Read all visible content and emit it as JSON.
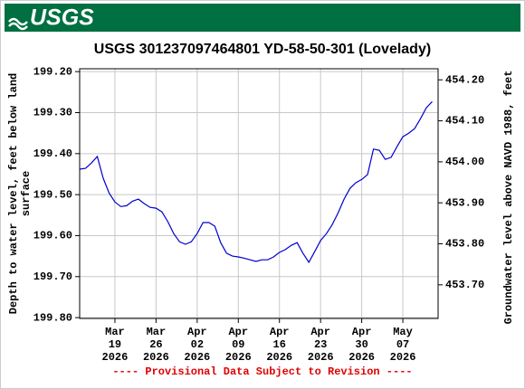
{
  "header": {
    "logo_text": "USGS"
  },
  "chart_data": {
    "type": "line",
    "title": "USGS 301237097464801 YD-58-50-301 (Lovelady)",
    "y_label": [
      "Depth to water level, feet below land",
      "surface"
    ],
    "y2_label": "Groundwater level above NAVD 1988, feet",
    "note": "---- Provisional Data Subject to Revision ----",
    "color": "#0000cc",
    "grid": true,
    "y_inverted": true,
    "xlim": [
      "2026-03-13",
      "2026-05-13"
    ],
    "xticks": [
      {
        "value": "2026-03-19",
        "label": [
          "Mar",
          "19",
          "2026"
        ]
      },
      {
        "value": "2026-03-26",
        "label": [
          "Mar",
          "26",
          "2026"
        ]
      },
      {
        "value": "2026-04-02",
        "label": [
          "Apr",
          "02",
          "2026"
        ]
      },
      {
        "value": "2026-04-09",
        "label": [
          "Apr",
          "09",
          "2026"
        ]
      },
      {
        "value": "2026-04-16",
        "label": [
          "Apr",
          "16",
          "2026"
        ]
      },
      {
        "value": "2026-04-23",
        "label": [
          "Apr",
          "23",
          "2026"
        ]
      },
      {
        "value": "2026-04-30",
        "label": [
          "Apr",
          "30",
          "2026"
        ]
      },
      {
        "value": "2026-05-07",
        "label": [
          "May",
          "07",
          "2026"
        ]
      }
    ],
    "ylim": [
      199.193,
      199.802
    ],
    "yticks": [
      {
        "value": 199.2,
        "label": "199.20"
      },
      {
        "value": 199.3,
        "label": "199.30"
      },
      {
        "value": 199.4,
        "label": "199.40"
      },
      {
        "value": 199.5,
        "label": "199.50"
      },
      {
        "value": 199.6,
        "label": "199.60"
      },
      {
        "value": 199.7,
        "label": "199.70"
      },
      {
        "value": 199.8,
        "label": "199.80"
      }
    ],
    "y2lim": [
      453.618,
      454.227
    ],
    "y2ticks": [
      {
        "value": 453.7,
        "label": "453.70"
      },
      {
        "value": 453.8,
        "label": "453.80"
      },
      {
        "value": 453.9,
        "label": "453.90"
      },
      {
        "value": 454.0,
        "label": "454.00"
      },
      {
        "value": 454.1,
        "label": "454.10"
      },
      {
        "value": 454.2,
        "label": "454.20"
      }
    ],
    "x": [
      "2026-03-13",
      "2026-03-14",
      "2026-03-15",
      "2026-03-16",
      "2026-03-17",
      "2026-03-18",
      "2026-03-19",
      "2026-03-20",
      "2026-03-21",
      "2026-03-22",
      "2026-03-23",
      "2026-03-24",
      "2026-03-25",
      "2026-03-26",
      "2026-03-27",
      "2026-03-28",
      "2026-03-29",
      "2026-03-30",
      "2026-03-31",
      "2026-04-01",
      "2026-04-02",
      "2026-04-03",
      "2026-04-04",
      "2026-04-05",
      "2026-04-06",
      "2026-04-07",
      "2026-04-08",
      "2026-04-09",
      "2026-04-10",
      "2026-04-11",
      "2026-04-12",
      "2026-04-13",
      "2026-04-14",
      "2026-04-15",
      "2026-04-16",
      "2026-04-17",
      "2026-04-18",
      "2026-04-19",
      "2026-04-20",
      "2026-04-21",
      "2026-04-22",
      "2026-04-23",
      "2026-04-24",
      "2026-04-25",
      "2026-04-26",
      "2026-04-27",
      "2026-04-28",
      "2026-04-29",
      "2026-04-30",
      "2026-05-01",
      "2026-05-02",
      "2026-05-03",
      "2026-05-04",
      "2026-05-05",
      "2026-05-06",
      "2026-05-07",
      "2026-05-08",
      "2026-05-09",
      "2026-05-10",
      "2026-05-11",
      "2026-05-12"
    ],
    "values": [
      199.438,
      199.436,
      199.423,
      199.407,
      199.46,
      199.496,
      199.518,
      199.529,
      199.527,
      199.516,
      199.511,
      199.522,
      199.531,
      199.533,
      199.542,
      199.566,
      199.595,
      199.615,
      199.621,
      199.615,
      199.595,
      199.568,
      199.568,
      199.577,
      199.617,
      199.643,
      199.65,
      199.652,
      199.655,
      199.659,
      199.663,
      199.659,
      199.659,
      199.652,
      199.641,
      199.634,
      199.624,
      199.617,
      199.643,
      199.665,
      199.639,
      199.612,
      199.595,
      199.573,
      199.544,
      199.511,
      199.485,
      199.471,
      199.463,
      199.451,
      199.389,
      199.392,
      199.414,
      199.409,
      199.383,
      199.359,
      199.35,
      199.339,
      199.315,
      199.288,
      199.273
    ]
  }
}
